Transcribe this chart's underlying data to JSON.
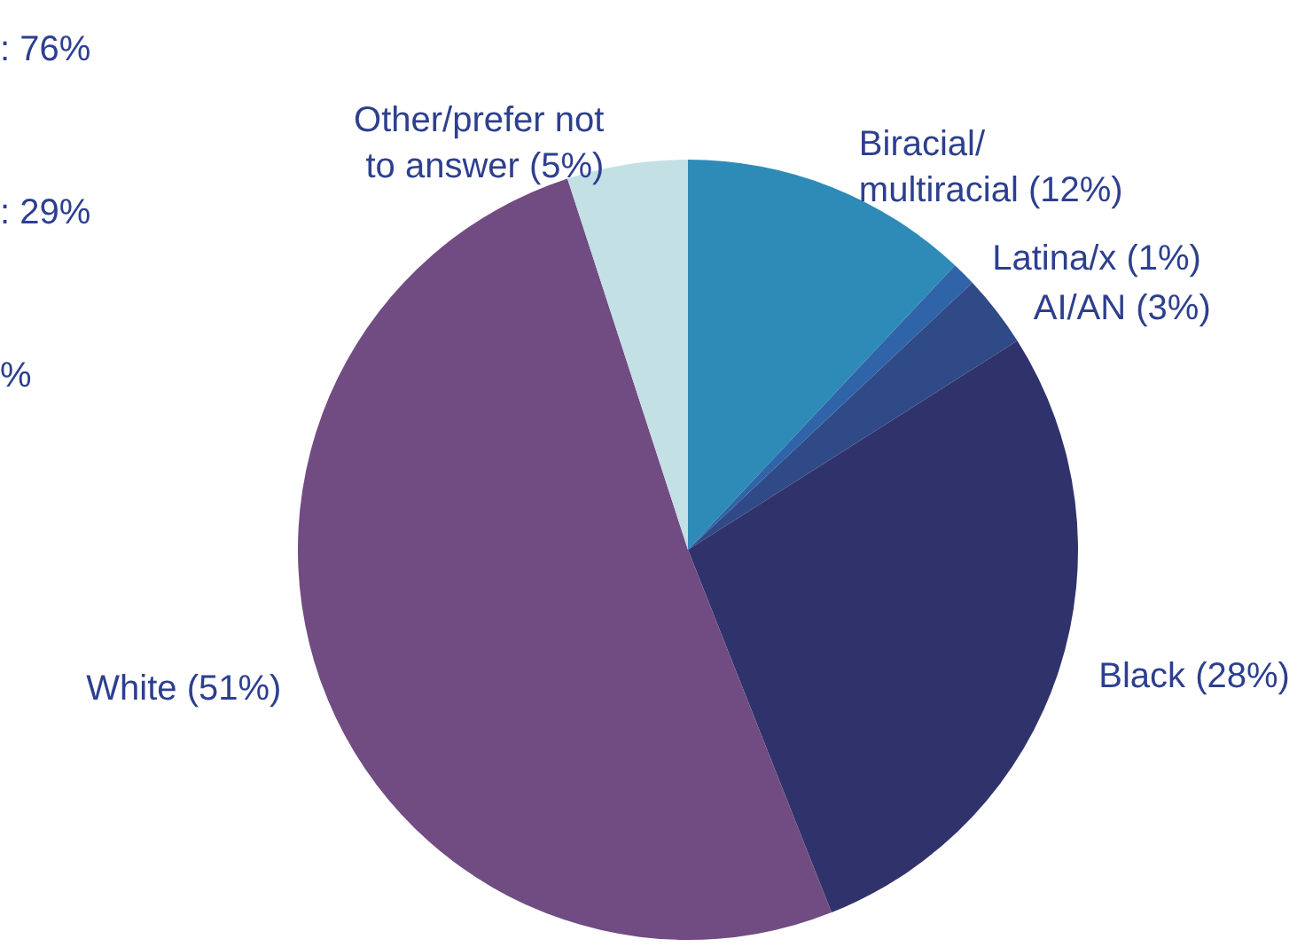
{
  "chart_data": {
    "type": "pie",
    "categories": [
      "Biracial/\nmultiracial",
      "Latina/x",
      "AI/AN",
      "Black",
      "White",
      "Other/prefer not\nto answer"
    ],
    "values": [
      12,
      1,
      3,
      28,
      51,
      5
    ],
    "colors": [
      "#2e8bb8",
      "#2f64a8",
      "#2f4a87",
      "#30336b",
      "#714c82",
      "#c3e0e5"
    ],
    "value_labels": [
      "(12%)",
      "(1%)",
      "(3%)",
      "(28%)",
      "(51%)",
      "(5%)"
    ],
    "annotations": [
      ": 76%",
      ": 29%",
      "%"
    ]
  }
}
